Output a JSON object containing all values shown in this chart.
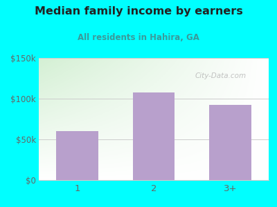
{
  "title": "Median family income by earners",
  "subtitle": "All residents in Hahira, GA",
  "categories": [
    "1",
    "2",
    "3+"
  ],
  "values": [
    60000,
    108000,
    92000
  ],
  "bar_color": "#b8a0cc",
  "background_color": "#00FFFF",
  "ylim": [
    0,
    150000
  ],
  "yticks": [
    0,
    50000,
    100000,
    150000
  ],
  "ytick_labels": [
    "$0",
    "$50k",
    "$100k",
    "$150k"
  ],
  "title_color": "#222222",
  "subtitle_color": "#3a9a9a",
  "tick_color": "#666666",
  "grid_color": "#cccccc",
  "watermark": "City-Data.com",
  "plot_bg_color": "#e8f5e0"
}
